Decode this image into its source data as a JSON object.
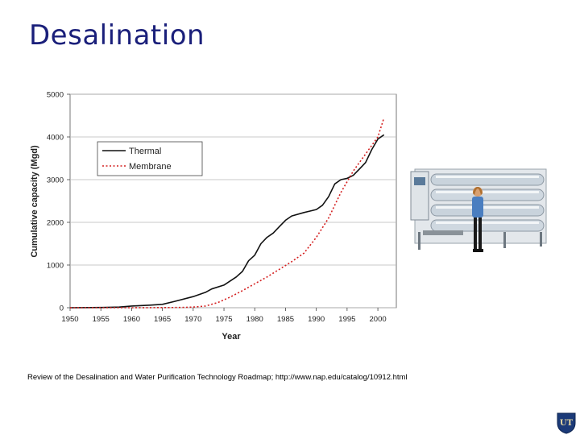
{
  "slide": {
    "title": "Desalination",
    "citation": "Review of the Desalination and Water Purification Technology Roadmap; http://www.nap.edu/catalog/10912.html",
    "logo_text": "UT"
  },
  "colors": {
    "title": "#1a1f7a",
    "thermal": "#111111",
    "membrane": "#d42020",
    "grid": "#b8b8b8",
    "machine": "#c9d3dc"
  },
  "chart_data": {
    "type": "line",
    "xlabel": "Year",
    "ylabel": "Cumulative capacity (Mgd)",
    "xlim": [
      1950,
      2003
    ],
    "ylim": [
      0,
      5000
    ],
    "xticks": [
      1950,
      1955,
      1960,
      1965,
      1970,
      1975,
      1980,
      1985,
      1990,
      1995,
      2000
    ],
    "yticks": [
      0,
      1000,
      2000,
      3000,
      4000,
      5000
    ],
    "grid": true,
    "legend_position": "upper-left",
    "series": [
      {
        "name": "Thermal",
        "style": "solid",
        "points": [
          [
            1950,
            0
          ],
          [
            1955,
            5
          ],
          [
            1958,
            15
          ],
          [
            1960,
            40
          ],
          [
            1963,
            60
          ],
          [
            1965,
            80
          ],
          [
            1967,
            150
          ],
          [
            1970,
            260
          ],
          [
            1972,
            360
          ],
          [
            1973,
            440
          ],
          [
            1975,
            530
          ],
          [
            1977,
            720
          ],
          [
            1978,
            850
          ],
          [
            1979,
            1100
          ],
          [
            1980,
            1230
          ],
          [
            1981,
            1500
          ],
          [
            1982,
            1650
          ],
          [
            1983,
            1750
          ],
          [
            1984,
            1900
          ],
          [
            1985,
            2050
          ],
          [
            1986,
            2150
          ],
          [
            1988,
            2230
          ],
          [
            1990,
            2300
          ],
          [
            1991,
            2400
          ],
          [
            1992,
            2600
          ],
          [
            1993,
            2900
          ],
          [
            1994,
            3000
          ],
          [
            1995,
            3030
          ],
          [
            1996,
            3100
          ],
          [
            1997,
            3250
          ],
          [
            1998,
            3400
          ],
          [
            1999,
            3700
          ],
          [
            2000,
            3950
          ],
          [
            2001,
            4050
          ]
        ]
      },
      {
        "name": "Membrane",
        "style": "dotted",
        "points": [
          [
            1950,
            0
          ],
          [
            1960,
            0
          ],
          [
            1968,
            5
          ],
          [
            1970,
            15
          ],
          [
            1972,
            40
          ],
          [
            1974,
            120
          ],
          [
            1976,
            250
          ],
          [
            1978,
            400
          ],
          [
            1980,
            560
          ],
          [
            1982,
            720
          ],
          [
            1984,
            900
          ],
          [
            1986,
            1080
          ],
          [
            1988,
            1280
          ],
          [
            1990,
            1650
          ],
          [
            1992,
            2100
          ],
          [
            1994,
            2700
          ],
          [
            1996,
            3200
          ],
          [
            1998,
            3600
          ],
          [
            2000,
            4000
          ],
          [
            2001,
            4450
          ]
        ]
      }
    ]
  }
}
